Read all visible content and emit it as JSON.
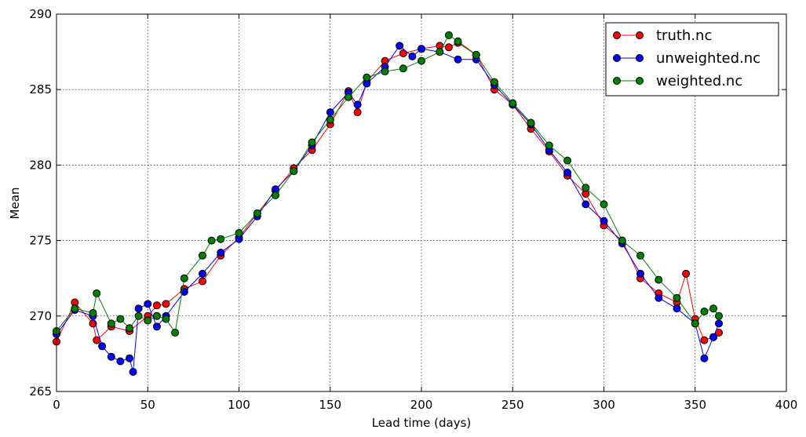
{
  "chart_data": {
    "type": "line",
    "title": "",
    "xlabel": "Lead time (days)",
    "ylabel": "Mean",
    "xlim": [
      0,
      400
    ],
    "ylim": [
      265,
      290
    ],
    "xticks": [
      0,
      50,
      100,
      150,
      200,
      250,
      300,
      350,
      400
    ],
    "yticks": [
      265,
      270,
      275,
      280,
      285,
      290
    ],
    "grid": true,
    "legend_position": "top-right",
    "series": [
      {
        "name": "truth.nc",
        "color": "#ff0000",
        "x": [
          0,
          10,
          20,
          22,
          30,
          40,
          50,
          55,
          60,
          70,
          80,
          90,
          100,
          110,
          120,
          130,
          140,
          150,
          160,
          165,
          170,
          180,
          190,
          200,
          210,
          215,
          220,
          230,
          240,
          250,
          260,
          270,
          280,
          290,
          300,
          310,
          320,
          330,
          340,
          345,
          350,
          355,
          360,
          363
        ],
        "values": [
          268.3,
          270.9,
          269.5,
          268.4,
          269.3,
          269.0,
          270.0,
          270.7,
          270.8,
          271.8,
          272.3,
          274.0,
          275.2,
          276.8,
          278.3,
          279.8,
          281.0,
          282.7,
          284.9,
          283.5,
          285.5,
          286.9,
          287.4,
          287.7,
          287.9,
          287.8,
          288.1,
          287.3,
          285.0,
          284.0,
          282.4,
          280.9,
          279.3,
          278.1,
          276.0,
          275.0,
          272.5,
          271.5,
          270.9,
          272.8,
          269.8,
          268.4,
          268.6,
          268.9
        ]
      },
      {
        "name": "unweighted.nc",
        "color": "#0000ff",
        "x": [
          0,
          10,
          20,
          25,
          30,
          35,
          40,
          42,
          45,
          50,
          55,
          60,
          70,
          80,
          90,
          100,
          110,
          120,
          130,
          140,
          150,
          160,
          165,
          170,
          180,
          188,
          195,
          200,
          210,
          220,
          230,
          240,
          250,
          260,
          270,
          280,
          290,
          300,
          310,
          320,
          330,
          340,
          350,
          355,
          360,
          363
        ],
        "values": [
          268.8,
          270.4,
          270.0,
          268.0,
          267.3,
          267.0,
          267.2,
          266.3,
          270.5,
          270.8,
          269.3,
          270.0,
          271.6,
          272.8,
          274.2,
          275.1,
          276.6,
          278.4,
          279.6,
          281.3,
          283.5,
          284.8,
          284.0,
          285.4,
          286.5,
          287.9,
          287.2,
          287.7,
          287.5,
          287.0,
          287.0,
          285.3,
          284.0,
          282.7,
          281.0,
          279.5,
          277.4,
          276.3,
          274.8,
          272.8,
          271.2,
          270.5,
          269.5,
          267.2,
          268.6,
          269.5
        ]
      },
      {
        "name": "weighted.nc",
        "color": "#008000",
        "x": [
          0,
          10,
          20,
          22,
          30,
          35,
          40,
          45,
          50,
          55,
          60,
          65,
          70,
          80,
          85,
          90,
          100,
          110,
          120,
          130,
          140,
          150,
          160,
          170,
          180,
          190,
          200,
          210,
          215,
          220,
          230,
          240,
          250,
          260,
          270,
          280,
          290,
          300,
          310,
          320,
          330,
          340,
          350,
          355,
          360,
          363
        ],
        "values": [
          269.0,
          270.5,
          270.2,
          271.5,
          269.5,
          269.8,
          269.2,
          270.0,
          269.7,
          270.0,
          269.8,
          268.9,
          272.5,
          274.0,
          275.0,
          275.1,
          275.5,
          276.8,
          278.0,
          279.6,
          281.5,
          283.0,
          284.5,
          285.8,
          286.2,
          286.4,
          286.9,
          287.5,
          288.6,
          288.2,
          287.3,
          285.5,
          284.1,
          282.8,
          281.3,
          280.3,
          278.5,
          277.4,
          275.0,
          274.0,
          272.4,
          271.2,
          269.5,
          270.3,
          270.5,
          270.0
        ]
      }
    ]
  }
}
